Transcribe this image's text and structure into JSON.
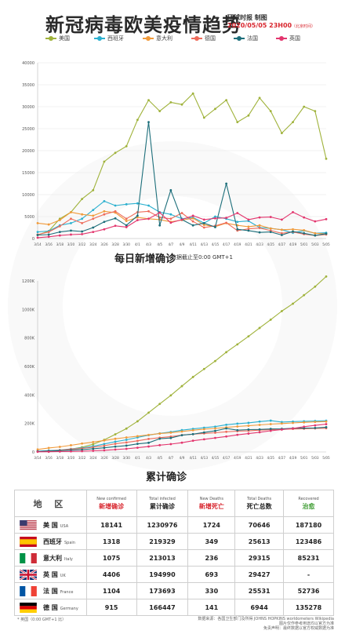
{
  "header": {
    "title": "新冠病毒欧美疫情趋势",
    "credit": "环球时报 制图",
    "date": "2020/05/05 23H00",
    "date_note": "（北京时间）"
  },
  "legend": [
    {
      "name": "美国",
      "color": "#9fb23a"
    },
    {
      "name": "西班牙",
      "color": "#2bb0cf"
    },
    {
      "name": "意大利",
      "color": "#f09a3a"
    },
    {
      "name": "德国",
      "color": "#ee6b5a"
    },
    {
      "name": "法国",
      "color": "#1c6e7a"
    },
    {
      "name": "英国",
      "color": "#e3366e"
    }
  ],
  "chart_data": [
    {
      "type": "line",
      "title": "每日新增确诊",
      "subtitle": "数据截止至0:00 GMT+1",
      "x": [
        "3/14",
        "3/16",
        "3/18",
        "3/20",
        "3/22",
        "3/24",
        "3/26",
        "3/28",
        "3/30",
        "4/1",
        "4/3",
        "4/5",
        "4/7",
        "4/9",
        "4/11",
        "4/13",
        "4/15",
        "4/17",
        "4/19",
        "4/21",
        "4/23",
        "4/25",
        "4/27",
        "4/29",
        "5/01",
        "5/03",
        "5/05"
      ],
      "x_tick_labels": [
        "3/14",
        "3/16",
        "3/18",
        "3/20",
        "3/22",
        "3/24",
        "3/26",
        "3/28",
        "3/30",
        "4/1",
        "4/3",
        "4/5",
        "4/7",
        "4/9",
        "4/11",
        "4/13",
        "4/15",
        "4/17",
        "4/19",
        "4/21",
        "4/23",
        "4/25",
        "4/27",
        "4/29",
        "5/01",
        "5/03",
        "5/05"
      ],
      "ylim": [
        0,
        40000
      ],
      "y_ticks": [
        0,
        5000,
        10000,
        15000,
        20000,
        25000,
        30000,
        35000,
        40000
      ],
      "grid": true,
      "series": [
        {
          "name": "美国",
          "color": "#9fb23a",
          "values": [
            800,
            1700,
            4500,
            6000,
            9000,
            11000,
            17500,
            19500,
            21000,
            27000,
            31500,
            29000,
            31000,
            30500,
            33000,
            27500,
            29500,
            31500,
            26500,
            28000,
            32000,
            29000,
            24000,
            26500,
            30000,
            29000,
            18141
          ]
        },
        {
          "name": "西班牙",
          "color": "#2bb0cf",
          "values": [
            1500,
            1700,
            3000,
            3500,
            4500,
            6500,
            8500,
            7500,
            7800,
            8000,
            7500,
            6000,
            5500,
            4500,
            4800,
            3500,
            5000,
            4500,
            3800,
            4000,
            2500,
            2300,
            2000,
            1300,
            1800,
            1200,
            1318
          ]
        },
        {
          "name": "意大利",
          "color": "#f09a3a",
          "values": [
            3500,
            3200,
            4200,
            6000,
            5500,
            5200,
            6200,
            5900,
            4000,
            4800,
            4500,
            4300,
            3800,
            4200,
            4600,
            3100,
            2700,
            3500,
            3000,
            2700,
            3000,
            2300,
            2000,
            2100,
            1900,
            1200,
            1075
          ]
        },
        {
          "name": "德国",
          "color": "#ee6b5a",
          "values": [
            900,
            1500,
            2800,
            4500,
            3500,
            4500,
            5500,
            6200,
            4500,
            6000,
            6200,
            4800,
            4500,
            5800,
            3900,
            2500,
            2900,
            3600,
            1800,
            2200,
            2400,
            1800,
            1200,
            1500,
            1000,
            700,
            915
          ]
        },
        {
          "name": "法国",
          "color": "#1c6e7a",
          "values": [
            800,
            900,
            1500,
            1800,
            1600,
            2500,
            3800,
            4600,
            3000,
            5200,
            26500,
            3000,
            11000,
            4300,
            3000,
            3500,
            2600,
            12500,
            2100,
            1800,
            1400,
            1500,
            800,
            1600,
            1200,
            700,
            1104
          ]
        },
        {
          "name": "英国",
          "color": "#e3366e",
          "values": [
            200,
            400,
            700,
            900,
            1000,
            1500,
            2100,
            2900,
            2600,
            4200,
            4500,
            5900,
            3600,
            4300,
            5200,
            4300,
            4600,
            4700,
            5800,
            4300,
            4800,
            4900,
            4300,
            6000,
            4800,
            3900,
            4406
          ]
        }
      ]
    },
    {
      "type": "line",
      "title": "累计确诊",
      "x": [
        "3/14",
        "3/16",
        "3/18",
        "3/20",
        "3/22",
        "3/24",
        "3/26",
        "3/28",
        "3/30",
        "4/1",
        "4/3",
        "4/5",
        "4/7",
        "4/9",
        "4/11",
        "4/13",
        "4/15",
        "4/17",
        "4/19",
        "4/21",
        "4/23",
        "4/25",
        "4/27",
        "4/29",
        "5/01",
        "5/03",
        "5/05"
      ],
      "x_tick_labels": [
        "3/14",
        "3/16",
        "3/18",
        "3/20",
        "3/22",
        "3/24",
        "3/26",
        "3/28",
        "3/30",
        "4/1",
        "4/3",
        "4/5",
        "4/7",
        "4/9",
        "4/11",
        "4/13",
        "4/15",
        "4/17",
        "4/19",
        "4/21",
        "4/23",
        "4/25",
        "4/27",
        "4/29",
        "5/01",
        "5/03",
        "5/05"
      ],
      "ylim": [
        0,
        1200000
      ],
      "y_ticks": [
        0,
        200000,
        400000,
        600000,
        800000,
        1000000,
        1200000
      ],
      "y_tick_labels": [
        "0",
        "200K",
        "400K",
        "600K",
        "800K",
        "1000K",
        "1200K"
      ],
      "grid": false,
      "series": [
        {
          "name": "美国",
          "color": "#9fb23a",
          "values": [
            2700,
            4600,
            9400,
            19600,
            33500,
            54000,
            85000,
            124000,
            164000,
            215000,
            276000,
            337000,
            397000,
            462000,
            526000,
            582000,
            638000,
            700000,
            755000,
            811000,
            870000,
            928000,
            988000,
            1040000,
            1100000,
            1160000,
            1230976
          ]
        },
        {
          "name": "西班牙",
          "color": "#2bb0cf",
          "values": [
            5200,
            9900,
            13900,
            21600,
            28700,
            39700,
            56200,
            72200,
            85200,
            102100,
            117700,
            130700,
            140500,
            153200,
            161900,
            170100,
            177600,
            190800,
            198700,
            204100,
            213000,
            219800,
            209500,
            212900,
            215200,
            217500,
            219329
          ]
        },
        {
          "name": "意大利",
          "color": "#f09a3a",
          "values": [
            17700,
            27900,
            35700,
            47000,
            59100,
            69200,
            80500,
            92500,
            101700,
            110600,
            119800,
            128900,
            135600,
            143600,
            152300,
            159500,
            165200,
            172400,
            178900,
            183900,
            189900,
            195300,
            199400,
            203600,
            207400,
            210700,
            213013
          ]
        },
        {
          "name": "德国",
          "color": "#ee6b5a",
          "values": [
            3700,
            7300,
            12300,
            20000,
            24900,
            32900,
            43900,
            57300,
            66900,
            77900,
            91200,
            100100,
            107700,
            118200,
            124900,
            130100,
            134800,
            141400,
            145700,
            148300,
            153100,
            156500,
            158800,
            161500,
            163000,
            165000,
            166447
          ]
        },
        {
          "name": "法国",
          "color": "#1c6e7a",
          "values": [
            4500,
            6600,
            9100,
            12600,
            16000,
            22300,
            29200,
            37600,
            44500,
            56900,
            64300,
            92800,
            98000,
            117700,
            124900,
            136800,
            147900,
            165000,
            152900,
            157100,
            158200,
            161500,
            162200,
            166400,
            167300,
            168400,
            173693
          ]
        },
        {
          "name": "英国",
          "color": "#e3366e",
          "values": [
            1100,
            1500,
            2600,
            4000,
            5700,
            8100,
            11700,
            17100,
            22100,
            29500,
            38200,
            47800,
            55200,
            65000,
            78900,
            88600,
            98500,
            108700,
            120100,
            129000,
            138100,
            148400,
            157100,
            165200,
            177500,
            186600,
            194990
          ]
        }
      ]
    }
  ],
  "table": {
    "headers": {
      "region": "地  区",
      "new_confirmed_en": "New confirmed",
      "new_confirmed_cn": "新增确诊",
      "total_infected_en": "Total infected",
      "total_infected_cn": "累计确诊",
      "new_deaths_en": "New Deaths",
      "new_deaths_cn": "新增死亡",
      "total_deaths_en": "Total Deaths",
      "total_deaths_cn": "死亡总数",
      "recovered_en": "Recovered",
      "recovered_cn": "治愈"
    },
    "rows": [
      {
        "cn": "美  国",
        "en": "USA",
        "flag": "usa-flag",
        "new_confirmed": "18141",
        "total_infected": "1230976",
        "new_deaths": "1724",
        "total_deaths": "70646",
        "recovered": "187180"
      },
      {
        "cn": "西班牙",
        "en": "Spain",
        "flag": "spain-flag",
        "new_confirmed": "1318",
        "total_infected": "219329",
        "new_deaths": "349",
        "total_deaths": "25613",
        "recovered": "123486"
      },
      {
        "cn": "意大利",
        "en": "Italy",
        "flag": "italy-flag",
        "new_confirmed": "1075",
        "total_infected": "213013",
        "new_deaths": "236",
        "total_deaths": "29315",
        "recovered": "85231"
      },
      {
        "cn": "英  国",
        "en": "UK",
        "flag": "uk-flag",
        "new_confirmed": "4406",
        "total_infected": "194990",
        "new_deaths": "693",
        "total_deaths": "29427",
        "recovered": "-"
      },
      {
        "cn": "法  国",
        "en": "France",
        "flag": "france-flag",
        "new_confirmed": "1104",
        "total_infected": "173693",
        "new_deaths": "330",
        "total_deaths": "25531",
        "recovered": "52736"
      },
      {
        "cn": "德  国",
        "en": "Germany",
        "flag": "germany-flag",
        "new_confirmed": "915",
        "total_infected": "166447",
        "new_deaths": "141",
        "total_deaths": "6944",
        "recovered": "135278"
      }
    ]
  },
  "footnote": "* 英国（0:00 GMT+1 比）",
  "sources": [
    "数据来源：各国卫生部门及所得 JOHNS HOPKINS worldometers Wikipedia",
    "图片仅作参考用途均以官方为准",
    "免责声明：最终数据以官方权威数据为准"
  ]
}
